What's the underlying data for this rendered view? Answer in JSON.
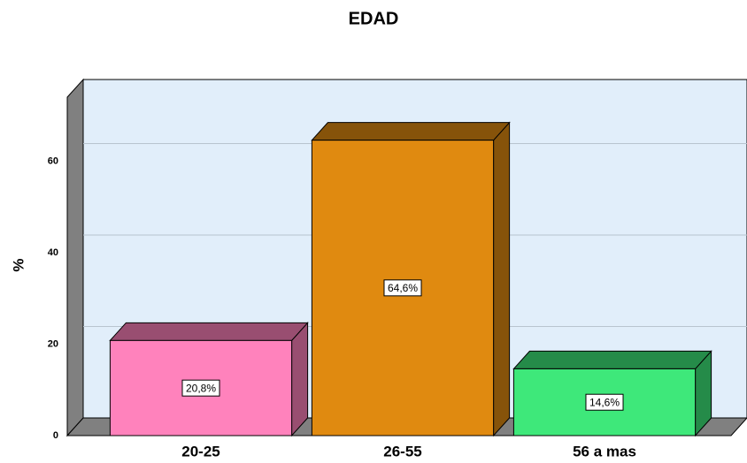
{
  "chart_data": {
    "type": "bar3d",
    "title": "EDAD",
    "y_label": "%",
    "categories": [
      "20-25",
      "26-55",
      "56 a mas"
    ],
    "values": [
      20.8,
      64.6,
      14.6
    ],
    "value_labels": [
      "20,8%",
      "64,6%",
      "14,6%"
    ],
    "colors": [
      "#ff82bc",
      "#e08a10",
      "#3ee87a"
    ],
    "ylim": [
      0,
      74
    ],
    "yticks": [
      0,
      20,
      40,
      60
    ],
    "grid": true
  }
}
